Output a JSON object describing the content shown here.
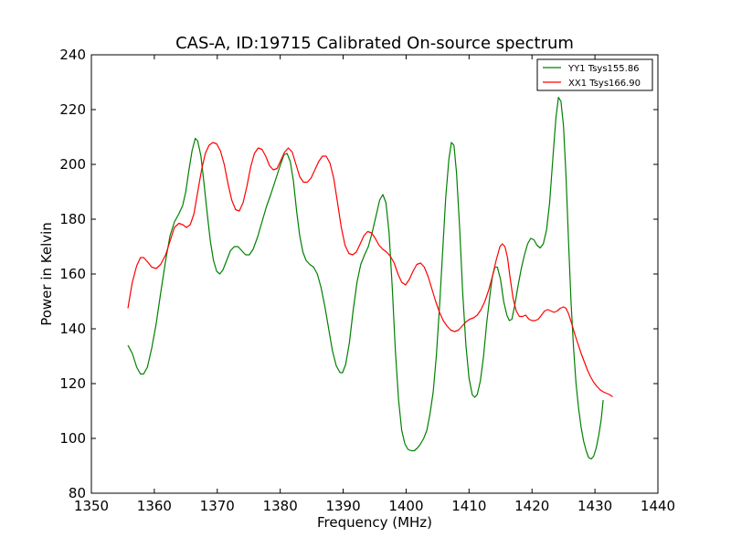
{
  "chart_data": {
    "type": "line",
    "title": "CAS-A, ID:19715 Calibrated On-source spectrum",
    "xlabel": "Frequency (MHz)",
    "ylabel": "Power in Kelvin",
    "xlim": [
      1350,
      1440
    ],
    "ylim": [
      80,
      240
    ],
    "xticks": [
      1350,
      1360,
      1370,
      1380,
      1390,
      1400,
      1410,
      1420,
      1430,
      1440
    ],
    "yticks": [
      80,
      100,
      120,
      140,
      160,
      180,
      200,
      220,
      240
    ],
    "grid": false,
    "legend_position": "top-right",
    "series": [
      {
        "name": "YY1 Tsys155.86",
        "color": "#008000",
        "points": [
          [
            1355.8,
            134
          ],
          [
            1356.5,
            131
          ],
          [
            1357.2,
            126
          ],
          [
            1357.8,
            123.5
          ],
          [
            1358.3,
            123.5
          ],
          [
            1358.9,
            126
          ],
          [
            1359.6,
            133
          ],
          [
            1360.3,
            142
          ],
          [
            1361.0,
            153
          ],
          [
            1361.8,
            165
          ],
          [
            1362.5,
            174
          ],
          [
            1363.2,
            179
          ],
          [
            1363.9,
            182
          ],
          [
            1364.5,
            185
          ],
          [
            1365.0,
            190
          ],
          [
            1365.5,
            198
          ],
          [
            1366.0,
            205
          ],
          [
            1366.5,
            209.5
          ],
          [
            1366.9,
            208.5
          ],
          [
            1367.4,
            203
          ],
          [
            1367.9,
            193
          ],
          [
            1368.4,
            182
          ],
          [
            1368.9,
            172
          ],
          [
            1369.4,
            165
          ],
          [
            1369.9,
            161
          ],
          [
            1370.4,
            160
          ],
          [
            1370.9,
            161.5
          ],
          [
            1371.5,
            165
          ],
          [
            1372.1,
            168.5
          ],
          [
            1372.7,
            170
          ],
          [
            1373.3,
            170
          ],
          [
            1373.9,
            168.5
          ],
          [
            1374.5,
            167
          ],
          [
            1375.1,
            167
          ],
          [
            1375.7,
            169
          ],
          [
            1376.4,
            173.5
          ],
          [
            1377.1,
            179
          ],
          [
            1377.8,
            184.5
          ],
          [
            1378.5,
            189
          ],
          [
            1379.2,
            194
          ],
          [
            1379.9,
            199
          ],
          [
            1380.6,
            203.5
          ],
          [
            1381.1,
            204
          ],
          [
            1381.6,
            201
          ],
          [
            1382.1,
            194
          ],
          [
            1382.6,
            183
          ],
          [
            1383.1,
            174
          ],
          [
            1383.6,
            168
          ],
          [
            1384.1,
            165
          ],
          [
            1384.7,
            163.5
          ],
          [
            1385.3,
            162.5
          ],
          [
            1385.9,
            160
          ],
          [
            1386.5,
            155
          ],
          [
            1387.1,
            148
          ],
          [
            1387.7,
            140
          ],
          [
            1388.3,
            132
          ],
          [
            1388.9,
            126.5
          ],
          [
            1389.5,
            124
          ],
          [
            1389.9,
            124
          ],
          [
            1390.4,
            127
          ],
          [
            1391.0,
            135
          ],
          [
            1391.6,
            147
          ],
          [
            1392.2,
            157
          ],
          [
            1392.8,
            163.5
          ],
          [
            1393.4,
            167
          ],
          [
            1394.0,
            170
          ],
          [
            1394.6,
            175
          ],
          [
            1395.2,
            181
          ],
          [
            1395.8,
            187
          ],
          [
            1396.3,
            189
          ],
          [
            1396.8,
            186
          ],
          [
            1397.3,
            175
          ],
          [
            1397.8,
            155
          ],
          [
            1398.3,
            132
          ],
          [
            1398.8,
            114
          ],
          [
            1399.3,
            103
          ],
          [
            1399.8,
            98
          ],
          [
            1400.3,
            96
          ],
          [
            1400.8,
            95.5
          ],
          [
            1401.3,
            95.5
          ],
          [
            1401.8,
            96.5
          ],
          [
            1402.3,
            98
          ],
          [
            1402.8,
            100
          ],
          [
            1403.3,
            103
          ],
          [
            1403.8,
            109
          ],
          [
            1404.3,
            117
          ],
          [
            1404.8,
            130
          ],
          [
            1405.3,
            148
          ],
          [
            1405.8,
            168
          ],
          [
            1406.3,
            188
          ],
          [
            1406.8,
            202
          ],
          [
            1407.2,
            208
          ],
          [
            1407.6,
            207
          ],
          [
            1408.0,
            197
          ],
          [
            1408.5,
            177
          ],
          [
            1409.0,
            153
          ],
          [
            1409.5,
            134
          ],
          [
            1410.0,
            122
          ],
          [
            1410.5,
            116
          ],
          [
            1410.9,
            115
          ],
          [
            1411.3,
            116
          ],
          [
            1411.8,
            121
          ],
          [
            1412.3,
            130
          ],
          [
            1412.8,
            142
          ],
          [
            1413.3,
            152
          ],
          [
            1413.7,
            159
          ],
          [
            1414.1,
            162.5
          ],
          [
            1414.5,
            162.5
          ],
          [
            1415.0,
            158
          ],
          [
            1415.5,
            150
          ],
          [
            1416.0,
            145
          ],
          [
            1416.4,
            143
          ],
          [
            1416.8,
            143.5
          ],
          [
            1417.3,
            149
          ],
          [
            1417.8,
            156
          ],
          [
            1418.3,
            162
          ],
          [
            1418.8,
            167
          ],
          [
            1419.3,
            171
          ],
          [
            1419.8,
            173
          ],
          [
            1420.3,
            172.5
          ],
          [
            1420.8,
            170.5
          ],
          [
            1421.3,
            169.5
          ],
          [
            1421.8,
            171
          ],
          [
            1422.3,
            176
          ],
          [
            1422.8,
            186
          ],
          [
            1423.3,
            202
          ],
          [
            1423.8,
            217
          ],
          [
            1424.2,
            224.5
          ],
          [
            1424.6,
            223
          ],
          [
            1425.0,
            214
          ],
          [
            1425.4,
            196
          ],
          [
            1425.8,
            172
          ],
          [
            1426.2,
            150
          ],
          [
            1426.6,
            133
          ],
          [
            1427.0,
            120
          ],
          [
            1427.4,
            111
          ],
          [
            1427.8,
            104
          ],
          [
            1428.2,
            99
          ],
          [
            1428.6,
            95.5
          ],
          [
            1429.0,
            93
          ],
          [
            1429.4,
            92.5
          ],
          [
            1429.8,
            93.5
          ],
          [
            1430.2,
            96.5
          ],
          [
            1430.6,
            101
          ],
          [
            1431.0,
            107
          ],
          [
            1431.3,
            114
          ]
        ]
      },
      {
        "name": "XX1 Tsys166.90",
        "color": "#ff0000",
        "points": [
          [
            1355.8,
            147.5
          ],
          [
            1356.5,
            157
          ],
          [
            1357.2,
            163
          ],
          [
            1357.8,
            166
          ],
          [
            1358.3,
            166
          ],
          [
            1358.9,
            164.5
          ],
          [
            1359.6,
            162.5
          ],
          [
            1360.3,
            162
          ],
          [
            1361.0,
            163.5
          ],
          [
            1361.8,
            167
          ],
          [
            1362.5,
            172
          ],
          [
            1363.2,
            177
          ],
          [
            1363.9,
            178.5
          ],
          [
            1364.5,
            178
          ],
          [
            1365.1,
            177
          ],
          [
            1365.7,
            178
          ],
          [
            1366.3,
            182
          ],
          [
            1366.9,
            190
          ],
          [
            1367.5,
            198
          ],
          [
            1368.1,
            204
          ],
          [
            1368.7,
            207
          ],
          [
            1369.3,
            208
          ],
          [
            1369.9,
            207.5
          ],
          [
            1370.5,
            205
          ],
          [
            1371.1,
            200
          ],
          [
            1371.7,
            193
          ],
          [
            1372.3,
            187
          ],
          [
            1372.9,
            183.5
          ],
          [
            1373.5,
            183
          ],
          [
            1374.1,
            186
          ],
          [
            1374.7,
            192
          ],
          [
            1375.3,
            199
          ],
          [
            1375.9,
            204
          ],
          [
            1376.5,
            206
          ],
          [
            1377.1,
            205.5
          ],
          [
            1377.7,
            203
          ],
          [
            1378.3,
            199.5
          ],
          [
            1378.9,
            198
          ],
          [
            1379.5,
            198.5
          ],
          [
            1380.1,
            201.5
          ],
          [
            1380.7,
            204.5
          ],
          [
            1381.3,
            206
          ],
          [
            1381.9,
            204.5
          ],
          [
            1382.5,
            200
          ],
          [
            1383.1,
            195.5
          ],
          [
            1383.7,
            193.5
          ],
          [
            1384.3,
            193.5
          ],
          [
            1384.9,
            195
          ],
          [
            1385.5,
            198
          ],
          [
            1386.1,
            201
          ],
          [
            1386.7,
            203
          ],
          [
            1387.3,
            203
          ],
          [
            1387.9,
            200.5
          ],
          [
            1388.5,
            195
          ],
          [
            1389.1,
            186
          ],
          [
            1389.7,
            177
          ],
          [
            1390.3,
            170.5
          ],
          [
            1390.9,
            167.5
          ],
          [
            1391.5,
            167
          ],
          [
            1392.1,
            168
          ],
          [
            1392.7,
            171
          ],
          [
            1393.3,
            174
          ],
          [
            1393.9,
            175.5
          ],
          [
            1394.5,
            175
          ],
          [
            1395.1,
            173
          ],
          [
            1395.7,
            170.5
          ],
          [
            1396.3,
            169
          ],
          [
            1396.9,
            168
          ],
          [
            1397.5,
            166.5
          ],
          [
            1398.1,
            164
          ],
          [
            1398.7,
            160
          ],
          [
            1399.3,
            157
          ],
          [
            1399.9,
            156
          ],
          [
            1400.5,
            158
          ],
          [
            1401.1,
            161
          ],
          [
            1401.7,
            163.5
          ],
          [
            1402.3,
            164
          ],
          [
            1402.9,
            162.5
          ],
          [
            1403.5,
            159
          ],
          [
            1404.1,
            154.5
          ],
          [
            1404.7,
            150
          ],
          [
            1405.3,
            146
          ],
          [
            1405.9,
            143
          ],
          [
            1406.5,
            141
          ],
          [
            1407.1,
            139.5
          ],
          [
            1407.7,
            139
          ],
          [
            1408.3,
            139.5
          ],
          [
            1408.9,
            141
          ],
          [
            1409.5,
            142.5
          ],
          [
            1410.1,
            143.5
          ],
          [
            1410.7,
            144
          ],
          [
            1411.3,
            145
          ],
          [
            1411.9,
            147
          ],
          [
            1412.5,
            150
          ],
          [
            1413.1,
            154
          ],
          [
            1413.7,
            159
          ],
          [
            1414.3,
            165
          ],
          [
            1414.9,
            170
          ],
          [
            1415.3,
            171
          ],
          [
            1415.7,
            170
          ],
          [
            1416.1,
            166
          ],
          [
            1416.5,
            159
          ],
          [
            1417.0,
            151
          ],
          [
            1417.5,
            146.5
          ],
          [
            1418.0,
            144.5
          ],
          [
            1418.5,
            144.5
          ],
          [
            1419.0,
            145
          ],
          [
            1419.5,
            143.5
          ],
          [
            1420.0,
            143
          ],
          [
            1420.5,
            143
          ],
          [
            1421.0,
            143.5
          ],
          [
            1421.5,
            145
          ],
          [
            1422.0,
            146.5
          ],
          [
            1422.5,
            147
          ],
          [
            1423.0,
            146.5
          ],
          [
            1423.5,
            146
          ],
          [
            1424.0,
            146.5
          ],
          [
            1424.5,
            147.5
          ],
          [
            1425.0,
            148
          ],
          [
            1425.4,
            147.5
          ],
          [
            1425.8,
            145.5
          ],
          [
            1426.3,
            142
          ],
          [
            1426.8,
            138
          ],
          [
            1427.3,
            134.5
          ],
          [
            1427.8,
            131
          ],
          [
            1428.3,
            128
          ],
          [
            1428.8,
            125
          ],
          [
            1429.3,
            122.5
          ],
          [
            1429.8,
            120.5
          ],
          [
            1430.3,
            119
          ],
          [
            1430.8,
            117.8
          ],
          [
            1431.3,
            117
          ],
          [
            1431.8,
            116.5
          ],
          [
            1432.3,
            116
          ],
          [
            1432.8,
            115.2
          ]
        ]
      }
    ]
  }
}
